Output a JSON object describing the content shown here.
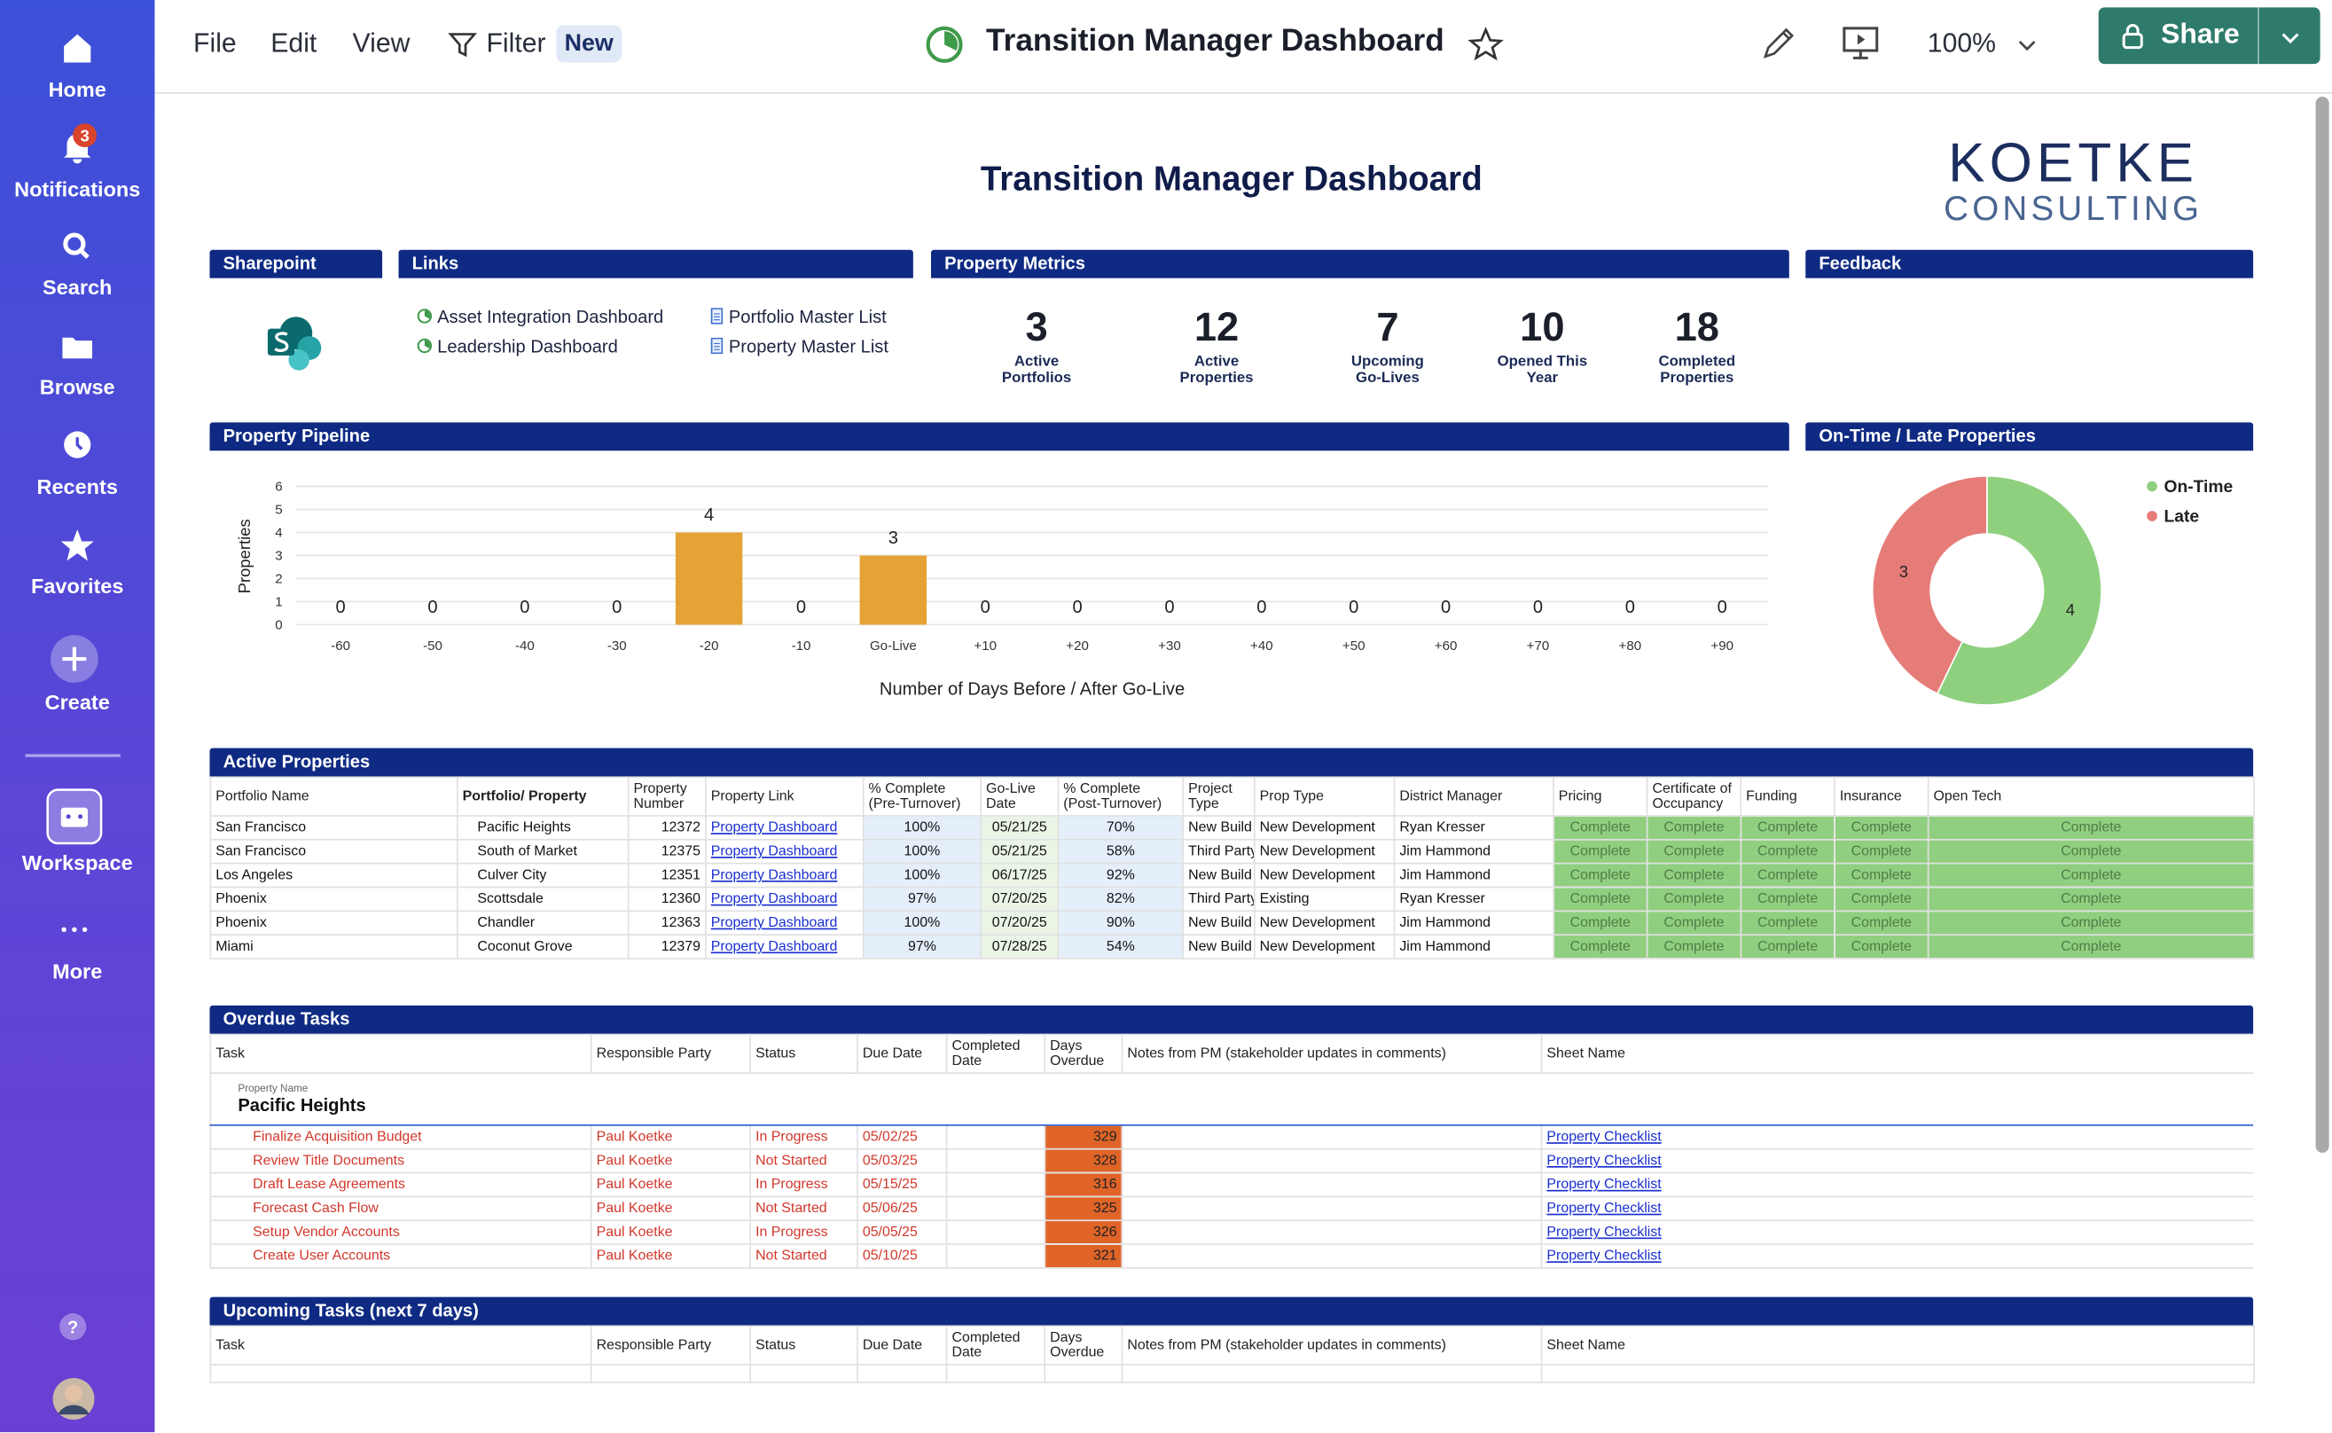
{
  "sidebar": {
    "items": [
      "Home",
      "Notifications",
      "Search",
      "Browse",
      "Recents",
      "Favorites",
      "Create",
      "Workspace",
      "More"
    ],
    "notification_count": "3",
    "help": "?"
  },
  "toolbar": {
    "menu": [
      "File",
      "Edit",
      "View",
      "Filter"
    ],
    "filter_badge": "New",
    "title": "Transition Manager Dashboard",
    "zoom": "100%",
    "share": "Share"
  },
  "dashboard": {
    "title": "Transition Manager Dashboard",
    "logo": {
      "line1": "KOETKE",
      "line2": "CONSULTING"
    },
    "widgets": {
      "sharepoint": "Sharepoint",
      "links": "Links",
      "metrics": "Property Metrics",
      "feedback": "Feedback",
      "pipeline": "Property Pipeline",
      "on_time": "On-Time / Late Properties"
    },
    "links": [
      "Asset Integration Dashboard",
      "Leadership Dashboard",
      "Portfolio Master List",
      "Property Master List"
    ],
    "metrics": [
      {
        "value": 3,
        "label": "Active Portfolios"
      },
      {
        "value": 12,
        "label": "Active Properties"
      },
      {
        "value": 7,
        "label": "Upcoming Go-Lives"
      },
      {
        "value": 10,
        "label": "Opened This Year"
      },
      {
        "value": 18,
        "label": "Completed Properties"
      }
    ]
  },
  "chart_data": [
    {
      "type": "bar",
      "ylabel": "Properties",
      "xlabel": "Number of Days Before / After Go-Live",
      "categories": [
        "-60",
        "-50",
        "-40",
        "-30",
        "-20",
        "-10",
        "Go-Live",
        "+10",
        "+20",
        "+30",
        "+40",
        "+50",
        "+60",
        "+70",
        "+80",
        "+90"
      ],
      "values": [
        0,
        0,
        0,
        0,
        4,
        0,
        3,
        0,
        0,
        0,
        0,
        0,
        0,
        0,
        0,
        0
      ],
      "color": "#e5a336",
      "ylim": [
        0,
        6
      ],
      "yticks": [
        0,
        1,
        2,
        3,
        4,
        5,
        6
      ],
      "grid": true
    },
    {
      "type": "pie",
      "categories": [
        "On-Time",
        "Late"
      ],
      "values": [
        4,
        3
      ],
      "colors": [
        "#8fd07f",
        "#e67c78"
      ],
      "legend": "top-right"
    }
  ],
  "active_properties": {
    "title": "Active Properties",
    "columns": [
      "Portfolio Name",
      "Portfolio/ Property",
      "Property Number",
      "Property Link",
      "% Complete (Pre-Turnover)",
      "Go-Live Date",
      "% Complete (Post-Turnover)",
      "Project Type",
      "Prop Type",
      "District Manager",
      "Pricing",
      "Certificate of Occupancy",
      "Funding",
      "Insurance",
      "Open Tech"
    ],
    "rows": [
      [
        "San Francisco",
        "Pacific Heights",
        "12372",
        "Property Dashboard",
        "100%",
        "05/21/25",
        "70%",
        "New Build",
        "New Development",
        "Ryan Kresser",
        "Complete",
        "Complete",
        "Complete",
        "Complete",
        "Complete"
      ],
      [
        "San Francisco",
        "South of Market",
        "12375",
        "Property Dashboard",
        "100%",
        "05/21/25",
        "58%",
        "Third Party",
        "New Development",
        "Jim Hammond",
        "Complete",
        "Complete",
        "Complete",
        "Complete",
        "Complete"
      ],
      [
        "Los Angeles",
        "Culver City",
        "12351",
        "Property Dashboard",
        "100%",
        "06/17/25",
        "92%",
        "New Build",
        "New Development",
        "Jim Hammond",
        "Complete",
        "Complete",
        "Complete",
        "Complete",
        "Complete"
      ],
      [
        "Phoenix",
        "Scottsdale",
        "12360",
        "Property Dashboard",
        "97%",
        "07/20/25",
        "82%",
        "Third Party",
        "Existing",
        "Ryan Kresser",
        "Complete",
        "Complete",
        "Complete",
        "Complete",
        "Complete"
      ],
      [
        "Phoenix",
        "Chandler",
        "12363",
        "Property Dashboard",
        "100%",
        "07/20/25",
        "90%",
        "New Build",
        "New Development",
        "Jim Hammond",
        "Complete",
        "Complete",
        "Complete",
        "Complete",
        "Complete"
      ],
      [
        "Miami",
        "Coconut Grove",
        "12379",
        "Property Dashboard",
        "97%",
        "07/28/25",
        "54%",
        "New Build",
        "New Development",
        "Jim Hammond",
        "Complete",
        "Complete",
        "Complete",
        "Complete",
        "Complete"
      ]
    ]
  },
  "overdue_tasks": {
    "title": "Overdue Tasks",
    "columns": [
      "Task",
      "Responsible Party",
      "Status",
      "Due Date",
      "Completed Date",
      "Days Overdue",
      "Notes from PM (stakeholder updates in comments)",
      "Sheet Name"
    ],
    "group_caption": "Property Name",
    "group": "Pacific Heights",
    "rows": [
      {
        "task": "Finalize Acquisition Budget",
        "responsible": "Paul Koetke",
        "status": "In Progress",
        "due": "05/02/25",
        "days_overdue": "329",
        "sheet": "Property Checklist"
      },
      {
        "task": "Review Title Documents",
        "responsible": "Paul Koetke",
        "status": "Not Started",
        "due": "05/03/25",
        "days_overdue": "328",
        "sheet": "Property Checklist"
      },
      {
        "task": "Draft Lease Agreements",
        "responsible": "Paul Koetke",
        "status": "In Progress",
        "due": "05/15/25",
        "days_overdue": "316",
        "sheet": "Property Checklist"
      },
      {
        "task": "Forecast Cash Flow",
        "responsible": "Paul Koetke",
        "status": "Not Started",
        "due": "05/06/25",
        "days_overdue": "325",
        "sheet": "Property Checklist"
      },
      {
        "task": "Setup Vendor Accounts",
        "responsible": "Paul Koetke",
        "status": "In Progress",
        "due": "05/05/25",
        "days_overdue": "326",
        "sheet": "Property Checklist"
      },
      {
        "task": "Create User Accounts",
        "responsible": "Paul Koetke",
        "status": "Not Started",
        "due": "05/10/25",
        "days_overdue": "321",
        "sheet": "Property Checklist"
      }
    ]
  },
  "upcoming_tasks": {
    "title": "Upcoming Tasks (next 7 days)",
    "columns": [
      "Task",
      "Responsible Party",
      "Status",
      "Due Date",
      "Completed Date",
      "Days Overdue",
      "Notes from PM (stakeholder updates in comments)",
      "Sheet Name"
    ]
  }
}
